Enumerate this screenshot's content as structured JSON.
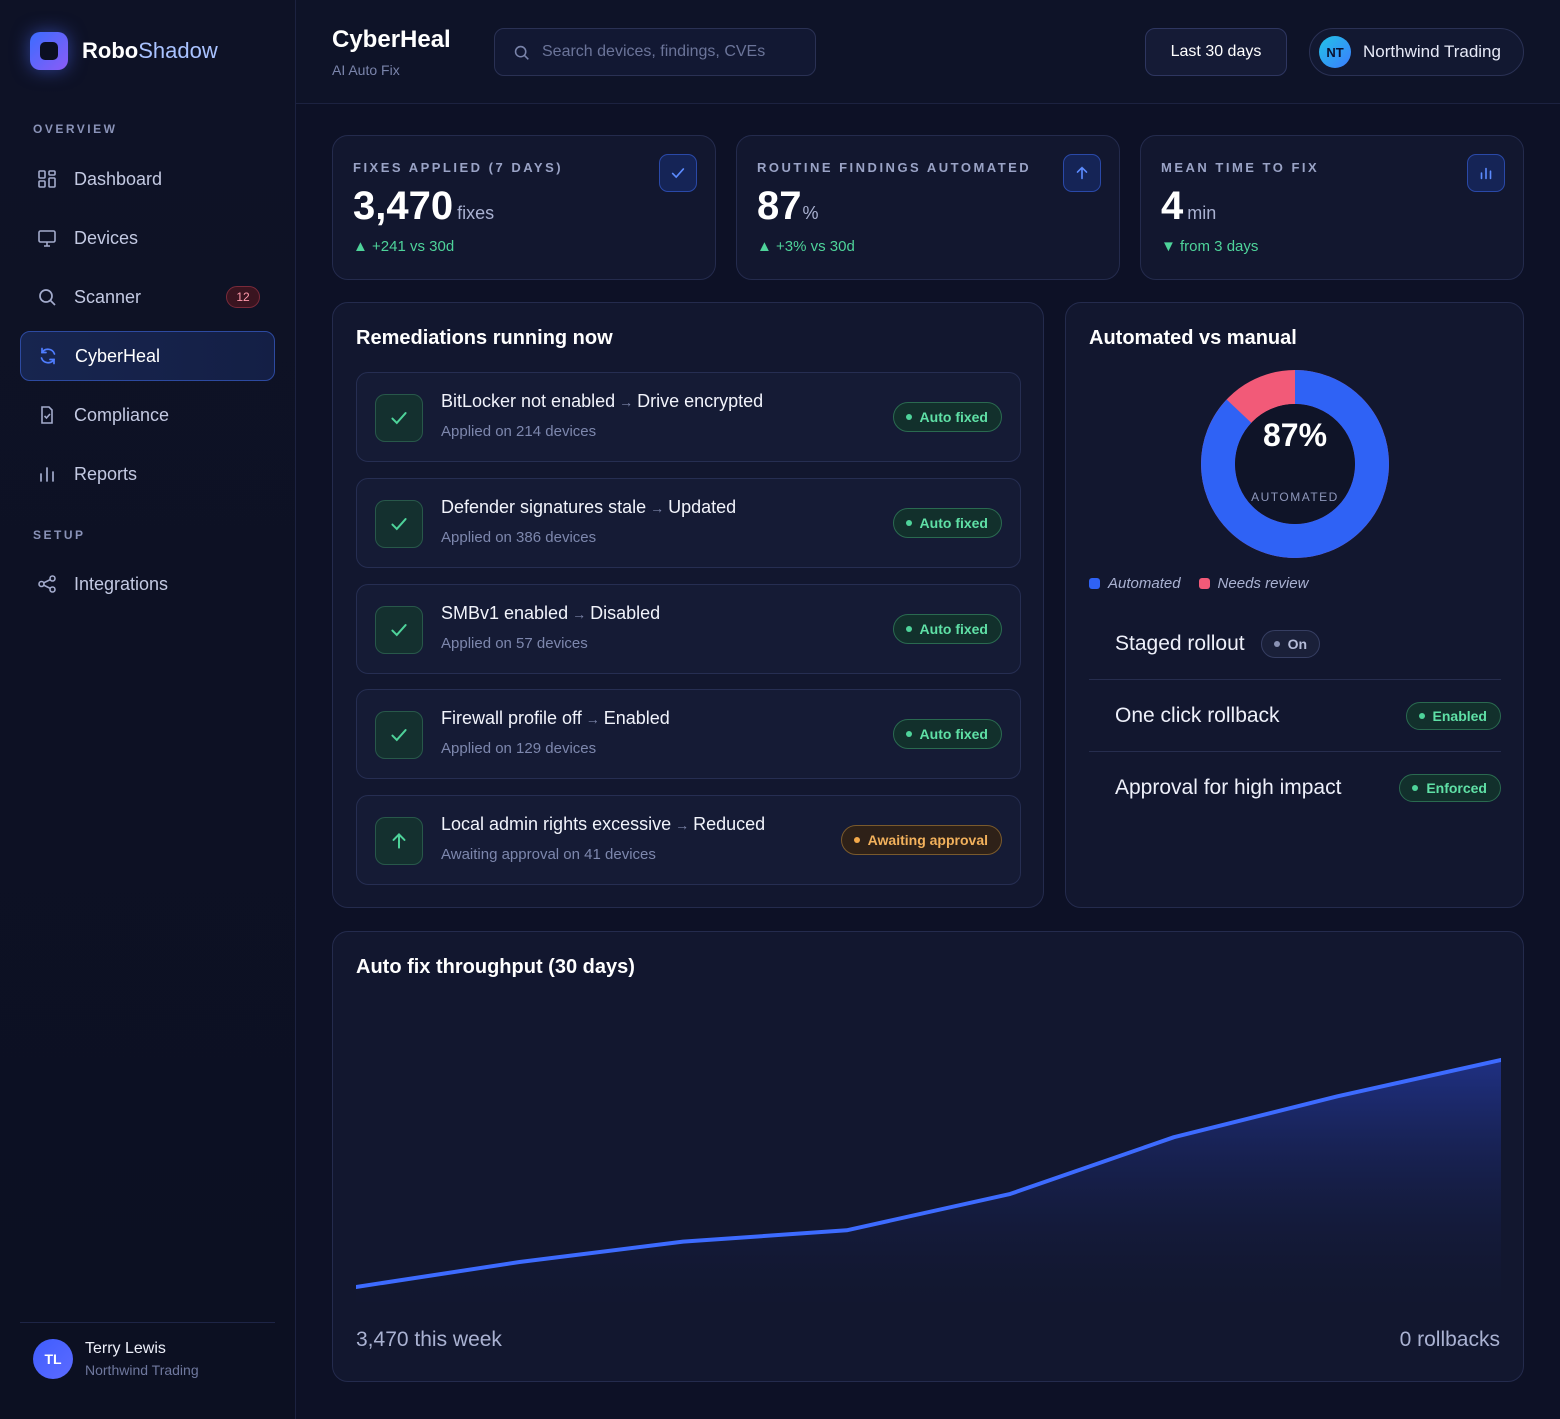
{
  "brand": {
    "name_bold": "Robo",
    "name_light": "Shadow"
  },
  "sidebar": {
    "section_overview": "OVERVIEW",
    "section_setup": "SETUP",
    "items": [
      {
        "label": "Dashboard",
        "icon": "grid-icon"
      },
      {
        "label": "Devices",
        "icon": "monitor-icon"
      },
      {
        "label": "Scanner",
        "icon": "search-icon",
        "badge": "12"
      },
      {
        "label": "CyberHeal",
        "icon": "refresh-icon",
        "active": true
      },
      {
        "label": "Compliance",
        "icon": "clipboard-check-icon"
      },
      {
        "label": "Reports",
        "icon": "bar-chart-icon"
      },
      {
        "label": "Integrations",
        "icon": "share-icon"
      }
    ],
    "user": {
      "initials": "TL",
      "name": "Terry Lewis",
      "org": "Northwind Trading"
    }
  },
  "header": {
    "title": "CyberHeal",
    "subtitle": "AI Auto Fix",
    "search_placeholder": "Search devices, findings, CVEs",
    "range_label": "Last 30 days",
    "org_initials": "NT",
    "org_name": "Northwind Trading"
  },
  "kpis": [
    {
      "label": "FIXES APPLIED (7 DAYS)",
      "value": "3,470",
      "unit": "fixes",
      "delta": "▲ +241 vs 30d",
      "icon": "check-icon"
    },
    {
      "label": "ROUTINE FINDINGS AUTOMATED",
      "value": "87",
      "unit": "%",
      "delta": "▲ +3% vs 30d",
      "icon": "arrow-up-icon"
    },
    {
      "label": "MEAN TIME TO FIX",
      "value": "4",
      "unit": "min",
      "delta": "▼ from 3 days",
      "icon": "bar-chart-icon"
    }
  ],
  "remediations": {
    "title": "Remediations running now",
    "items": [
      {
        "from": "BitLocker not enabled",
        "to": "Drive encrypted",
        "sub": "Applied on 214 devices",
        "status": "Auto fixed",
        "kind": "green",
        "icon": "check-icon"
      },
      {
        "from": "Defender signatures stale",
        "to": "Updated",
        "sub": "Applied on 386 devices",
        "status": "Auto fixed",
        "kind": "green",
        "icon": "check-icon"
      },
      {
        "from": "SMBv1 enabled",
        "to": "Disabled",
        "sub": "Applied on 57 devices",
        "status": "Auto fixed",
        "kind": "green",
        "icon": "check-icon"
      },
      {
        "from": "Firewall profile off",
        "to": "Enabled",
        "sub": "Applied on 129 devices",
        "status": "Auto fixed",
        "kind": "green",
        "icon": "check-icon"
      },
      {
        "from": "Local admin rights excessive",
        "to": "Reduced",
        "sub": "Awaiting approval on 41 devices",
        "status": "Awaiting approval",
        "kind": "amber",
        "icon": "arrow-up-icon"
      }
    ]
  },
  "automation": {
    "title": "Automated vs manual",
    "percent_label": "87%",
    "center_label": "AUTOMATED",
    "automated_fraction": 0.87,
    "legend": [
      {
        "label": "Automated",
        "color": "#2f62f5"
      },
      {
        "label": "Needs review",
        "color": "#f25a78"
      }
    ],
    "settings": [
      {
        "label": "Staged rollout",
        "status": "On",
        "kind": "gray"
      },
      {
        "label": "One click rollback",
        "status": "Enabled",
        "kind": "green"
      },
      {
        "label": "Approval for high impact",
        "status": "Enforced",
        "kind": "green"
      }
    ]
  },
  "throughput": {
    "title": "Auto fix throughput (30 days)",
    "footer_left": "3,470 this week",
    "footer_right": "0 rollbacks"
  },
  "chart_data": {
    "type": "area",
    "title": "Auto fix throughput (30 days)",
    "x": [
      0,
      1,
      2,
      3,
      4,
      5,
      6,
      7
    ],
    "values": [
      0,
      11,
      20,
      25,
      41,
      66,
      84,
      100
    ],
    "ylim": [
      0,
      100
    ],
    "grid": false,
    "color": "#3d6bff"
  }
}
